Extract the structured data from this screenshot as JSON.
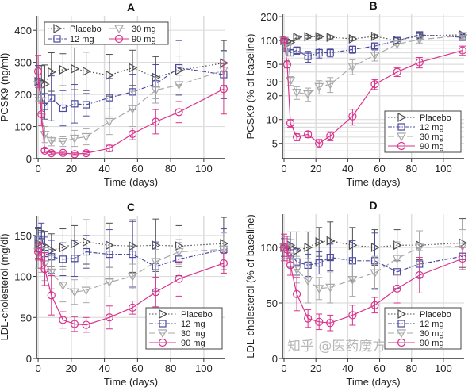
{
  "colors": {
    "placebo": "#4d4d4d",
    "12mg": "#4b4b9e",
    "30mg": "#a8a8a8",
    "90mg": "#d9338c"
  },
  "series_style": [
    {
      "name": "Placebo",
      "marker": "triangle-right",
      "line": "dotted",
      "color": "#4d4d4d"
    },
    {
      "name": "12 mg",
      "marker": "square",
      "line": "dash-dot",
      "color": "#4b4b9e"
    },
    {
      "name": "30 mg",
      "marker": "triangle-down",
      "line": "dashed",
      "color": "#a8a8a8"
    },
    {
      "name": "90 mg",
      "marker": "circle",
      "line": "solid",
      "color": "#d9338c"
    }
  ],
  "chart_data": [
    {
      "type": "line",
      "title": "A",
      "xlabel": "Time (days)",
      "ylabel": "PCSK9 (ng/ml)",
      "xlim": [
        -1,
        113
      ],
      "ylim": [
        0,
        445
      ],
      "yscale": "linear",
      "xticks": [
        0,
        20,
        40,
        60,
        80,
        100
      ],
      "yticks": [
        0,
        100,
        200,
        300,
        400
      ],
      "grid": true,
      "legend": "top-left",
      "x": [
        0,
        2,
        4,
        8,
        15,
        22,
        29,
        43,
        57,
        71,
        85,
        112
      ],
      "series": [
        {
          "name": "Placebo",
          "values": [
            240,
            240,
            232,
            270,
            277,
            280,
            272,
            260,
            283,
            253,
            275,
            298
          ],
          "err": [
            50,
            50,
            60,
            60,
            50,
            65,
            60,
            65,
            55,
            65,
            45,
            70
          ]
        },
        {
          "name": "12 mg",
          "values": [
            240,
            190,
            163,
            188,
            157,
            171,
            168,
            190,
            208,
            233,
            283,
            262
          ],
          "err": [
            50,
            50,
            40,
            70,
            55,
            60,
            35,
            60,
            55,
            60,
            85,
            75
          ]
        },
        {
          "name": "30 mg",
          "values": [
            230,
            180,
            75,
            55,
            53,
            63,
            68,
            115,
            155,
            213,
            230,
            275
          ],
          "err": [
            50,
            40,
            25,
            15,
            15,
            25,
            25,
            40,
            55,
            40,
            30,
            60
          ]
        },
        {
          "name": "90 mg",
          "values": [
            272,
            138,
            25,
            17,
            18,
            14,
            17,
            32,
            77,
            115,
            145,
            217
          ],
          "err": [
            50,
            35,
            6,
            4,
            4,
            4,
            4,
            10,
            18,
            38,
            33,
            78
          ]
        }
      ]
    },
    {
      "type": "line",
      "title": "B",
      "xlabel": "Time (days)",
      "ylabel": "PCSK9 (% of baseline)",
      "xlim": [
        -1,
        113
      ],
      "ylim": [
        3.2,
        215
      ],
      "yscale": "log",
      "xticks": [
        0,
        20,
        40,
        60,
        80,
        100
      ],
      "yticks": [
        5,
        10,
        20,
        30,
        50,
        100,
        200
      ],
      "grid": true,
      "legend": "bottom-right",
      "x": [
        0,
        2,
        4,
        8,
        15,
        22,
        29,
        43,
        57,
        71,
        85,
        112
      ],
      "series": [
        {
          "name": "Placebo",
          "values": [
            100,
            98,
            95,
            110,
            112,
            112,
            110,
            105,
            113,
            100,
            115,
            118
          ],
          "err": [
            5,
            5,
            5,
            5,
            5,
            5,
            5,
            5,
            5,
            8,
            8,
            8
          ]
        },
        {
          "name": "12 mg",
          "values": [
            100,
            80,
            70,
            75,
            63,
            70,
            70,
            77,
            85,
            100,
            118,
            110
          ],
          "err": [
            5,
            8,
            6,
            8,
            10,
            10,
            8,
            8,
            6,
            8,
            10,
            8
          ]
        },
        {
          "name": "30 mg",
          "values": [
            100,
            80,
            31,
            22,
            21,
            26,
            28,
            47,
            65,
            90,
            103,
            115
          ],
          "err": [
            5,
            8,
            4,
            4,
            4,
            5,
            6,
            10,
            10,
            10,
            10,
            10
          ]
        },
        {
          "name": "90 mg",
          "values": [
            100,
            50,
            9,
            6,
            6.5,
            5,
            6.2,
            11,
            28,
            40,
            53,
            75
          ],
          "err": [
            5,
            5,
            1,
            0.6,
            0.6,
            0.6,
            0.8,
            2.5,
            4,
            5,
            8,
            10
          ]
        }
      ]
    },
    {
      "type": "line",
      "title": "C",
      "xlabel": "Time (days)",
      "ylabel": "LDL-cholesterol (mg/dl)",
      "xlim": [
        -1,
        113
      ],
      "ylim": [
        0,
        174
      ],
      "yscale": "linear",
      "xticks": [
        0,
        20,
        40,
        60,
        80,
        100
      ],
      "yticks": [
        0,
        50,
        100,
        150
      ],
      "grid": true,
      "legend": "bottom-right",
      "x": [
        0,
        2,
        4,
        8,
        15,
        22,
        29,
        43,
        57,
        71,
        85,
        112
      ],
      "series": [
        {
          "name": "Placebo",
          "values": [
            140,
            138,
            137,
            132,
            135,
            140,
            142,
            138,
            137,
            138,
            137,
            140
          ],
          "err": [
            18,
            18,
            18,
            20,
            23,
            22,
            27,
            27,
            32,
            32,
            25,
            32
          ]
        },
        {
          "name": "12 mg",
          "values": [
            145,
            150,
            128,
            124,
            121,
            122,
            130,
            127,
            127,
            112,
            121,
            133
          ],
          "err": [
            15,
            15,
            20,
            20,
            20,
            22,
            20,
            30,
            40,
            30,
            20,
            25
          ]
        },
        {
          "name": "30 mg",
          "values": [
            130,
            125,
            115,
            105,
            89,
            81,
            83,
            93,
            100,
            118,
            130,
            133
          ],
          "err": [
            20,
            20,
            20,
            20,
            20,
            15,
            15,
            18,
            15,
            15,
            15,
            20
          ]
        },
        {
          "name": "90 mg",
          "values": [
            130,
            125,
            109,
            77,
            47,
            42,
            41,
            50,
            62,
            81,
            97,
            116
          ],
          "err": [
            10,
            15,
            20,
            24,
            10,
            9,
            9,
            14,
            8,
            18,
            21,
            12
          ]
        }
      ]
    },
    {
      "type": "line",
      "title": "D",
      "xlabel": "Time (days)",
      "ylabel": "LDL-cholesterol (% of baseline)",
      "xlim": [
        -1,
        113
      ],
      "ylim": [
        0,
        130
      ],
      "yscale": "linear",
      "xticks": [
        0,
        20,
        40,
        60,
        80,
        100
      ],
      "yticks": [
        0,
        50,
        100
      ],
      "grid": true,
      "legend": "bottom-right",
      "x": [
        0,
        2,
        4,
        8,
        15,
        22,
        29,
        43,
        57,
        71,
        85,
        112
      ],
      "series": [
        {
          "name": "Placebo",
          "values": [
            100,
            100,
            102,
            97,
            100,
            105,
            106,
            102,
            100,
            102,
            102,
            104
          ],
          "err": [
            10,
            10,
            12,
            17,
            14,
            13,
            17,
            16,
            16,
            14,
            13,
            22
          ]
        },
        {
          "name": "12 mg",
          "values": [
            100,
            100,
            95,
            87,
            84,
            86,
            91,
            88,
            88,
            78,
            85,
            92
          ],
          "err": [
            8,
            10,
            12,
            12,
            10,
            10,
            12,
            18,
            25,
            15,
            12,
            12
          ]
        },
        {
          "name": "30 mg",
          "values": [
            100,
            98,
            92,
            80,
            70,
            63,
            64,
            71,
            77,
            90,
            100,
            101
          ],
          "err": [
            10,
            10,
            10,
            12,
            20,
            10,
            14,
            15,
            15,
            15,
            15,
            15
          ]
        },
        {
          "name": "90 mg",
          "values": [
            100,
            98,
            84,
            58,
            36,
            33,
            32,
            39,
            48,
            63,
            75,
            90
          ],
          "err": [
            12,
            12,
            9,
            15,
            8,
            7,
            7,
            9,
            7,
            13,
            16,
            10
          ]
        }
      ]
    }
  ],
  "watermark": "知乎 @医药魔方"
}
